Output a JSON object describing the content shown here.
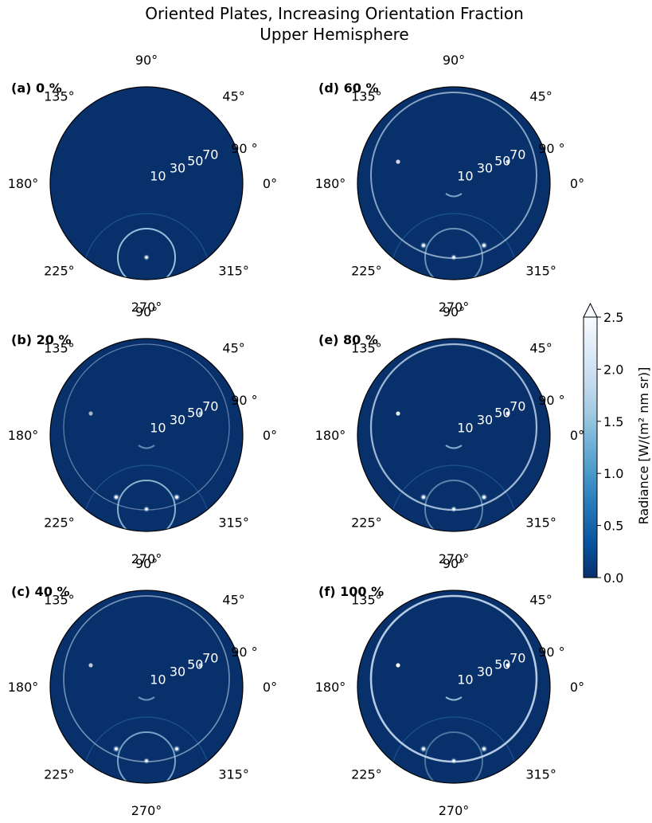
{
  "figure": {
    "title_line1": "Oriented Plates, Increasing Orientation Fraction",
    "title_line2": "Upper Hemisphere"
  },
  "colors": {
    "background": "#08306b",
    "colormap": [
      "#08306b",
      "#08519c",
      "#2171b5",
      "#4292c6",
      "#6baed6",
      "#9ecae1",
      "#c6dbef",
      "#deebf7",
      "#f7fbff"
    ],
    "border": "#000000"
  },
  "chart_data": {
    "type": "heatmap",
    "projection": "polar (upper hemisphere, azimuth vs zenith angle)",
    "azimuth_tick_labels": [
      "0°",
      "45°",
      "90°",
      "135°",
      "180°",
      "225°",
      "270°",
      "315°"
    ],
    "zenith_tick_labels": [
      "10",
      "30",
      "50",
      "70",
      "90 °"
    ],
    "panels": [
      {
        "label": "(a) 0 %",
        "orientation_fraction_percent": 0
      },
      {
        "label": "(b) 20 %",
        "orientation_fraction_percent": 20
      },
      {
        "label": "(c) 40 %",
        "orientation_fraction_percent": 40
      },
      {
        "label": "(d) 60 %",
        "orientation_fraction_percent": 60
      },
      {
        "label": "(e) 80 %",
        "orientation_fraction_percent": 80
      },
      {
        "label": "(f) 100 %",
        "orientation_fraction_percent": 100
      }
    ],
    "colorbar": {
      "label": "Radiance [W/(m² nm sr)]",
      "range": [
        0.0,
        2.5
      ],
      "ticks": [
        "0.0",
        "0.5",
        "1.0",
        "1.5",
        "2.0",
        "2.5"
      ],
      "extend": "max",
      "colormap": "Blues_r"
    }
  }
}
